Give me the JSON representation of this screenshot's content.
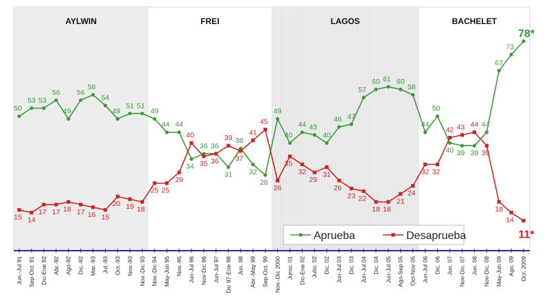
{
  "chart_data": {
    "type": "line",
    "title": "",
    "xlabel": "",
    "ylabel": "",
    "ylim": [
      0,
      90
    ],
    "grid": false,
    "legend_position": "bottom-right",
    "periods": [
      {
        "name": "AYLWIN",
        "start": 0,
        "end": 10,
        "shaded": true
      },
      {
        "name": "FREI",
        "start": 11,
        "end": 20,
        "shaded": false
      },
      {
        "name": "LAGOS",
        "start": 21,
        "end": 32,
        "shaded": true
      },
      {
        "name": "BACHELET",
        "start": 33,
        "end": 41,
        "shaded": false
      }
    ],
    "categories": [
      "Jun.-Jul 91",
      "Sep-Oct. 91",
      "Dic-Ene 92",
      "Abr.-92",
      "Ago-92",
      "Dic.-92",
      "Mar.-93",
      "Jul.-93",
      "Oct.-93",
      "Nov.-93",
      "Nov.-Dic 93",
      "Nov.-Dic 94",
      "May-Jun 95",
      "Nov.-95",
      "Jun-Jul 96",
      "Nov-Dic 96",
      "Jun-Jul 97",
      "Dic 97-Ene 98",
      "Jun. 98",
      "Abr.-May 99",
      "Sep-Oct. 99",
      "Nov.-Dic 2000",
      "Junio. 01",
      "Dic-Ene 02",
      "Julio. 02",
      "Dic. 02",
      "Jun-Jul 03",
      "Dic. 03",
      "Jun-Jul 04",
      "Dic. 04",
      "Jun-Jul 05",
      "Ago-Sep 05",
      "Oct-Nov 05",
      "Jun-Jul 06",
      "Dic. 06",
      "Jun. 07",
      "Nov-Dic. 07",
      "Jun. 08",
      "Nov-Dic. 08",
      "May-Jun 09",
      "Ago. 09",
      "Oct. 2009"
    ],
    "series": [
      {
        "name": "Aprueba",
        "color": "#3a9a3a",
        "values": [
          50,
          53,
          53,
          56,
          49,
          56,
          58,
          54,
          49,
          51,
          51,
          49,
          44,
          44,
          34,
          36,
          36,
          31,
          38,
          32,
          28,
          49,
          40,
          44,
          43,
          40,
          46,
          47,
          57,
          60,
          61,
          60,
          58,
          44,
          50,
          40,
          39,
          39,
          44,
          67,
          73,
          78
        ],
        "last_label": "78*"
      },
      {
        "name": "Desaprueba",
        "color": "#cc2222",
        "values": [
          15,
          14,
          17,
          17,
          18,
          17,
          16,
          15,
          20,
          19,
          18,
          25,
          25,
          29,
          40,
          35,
          36,
          39,
          37,
          41,
          45,
          26,
          35,
          32,
          29,
          31,
          26,
          23,
          22,
          18,
          18,
          21,
          24,
          32,
          32,
          42,
          43,
          44,
          39,
          18,
          14,
          11
        ],
        "last_label": "11*"
      }
    ]
  }
}
